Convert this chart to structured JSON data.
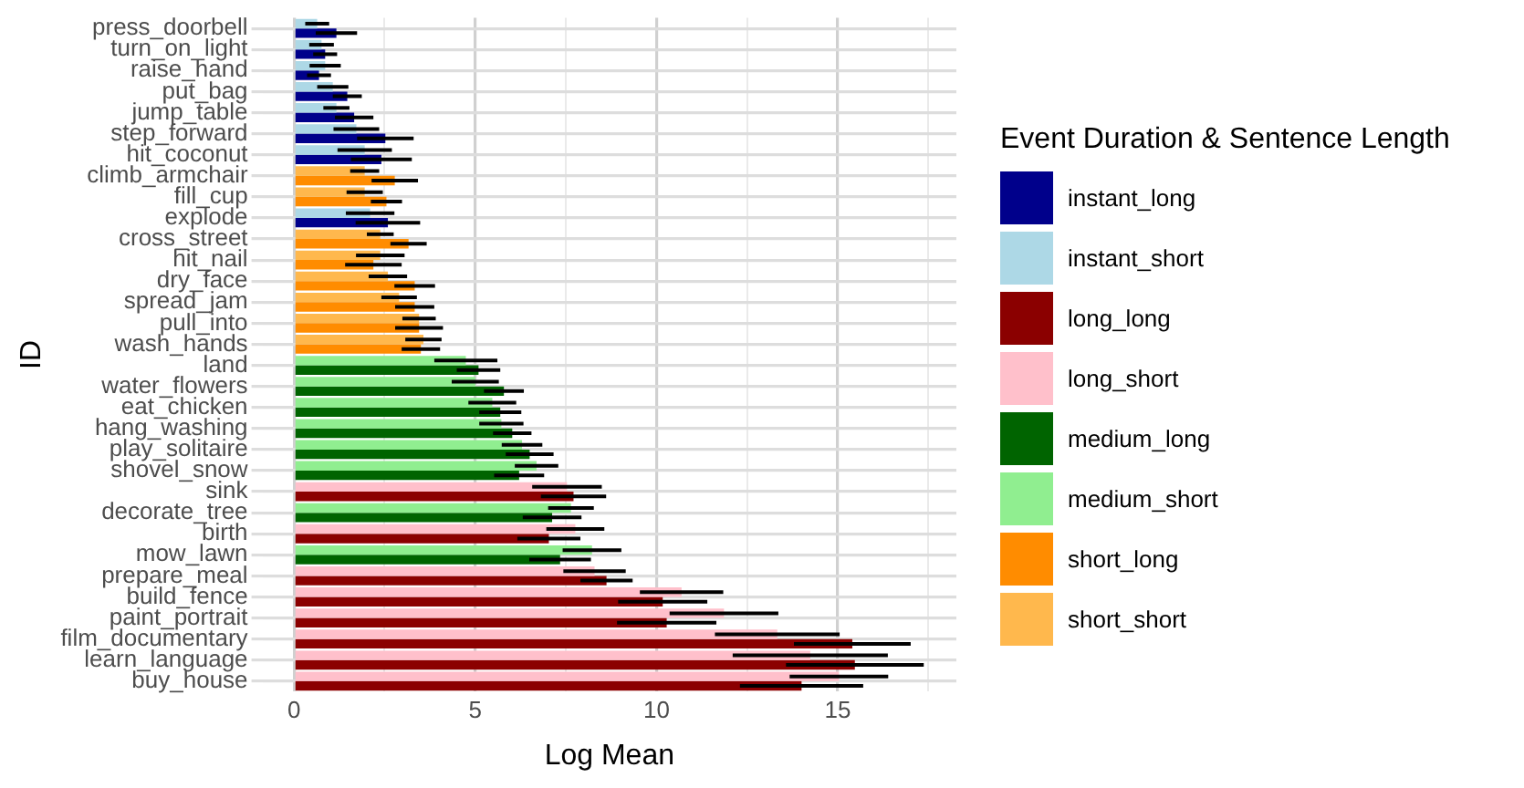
{
  "chart_data": {
    "type": "bar",
    "orientation": "horizontal",
    "xlabel": "Log Mean",
    "ylabel": "ID",
    "legend_title": "Event Duration & Sentence Length",
    "legend": "right",
    "grid": true,
    "categories": [
      "press_doorbell",
      "turn_on_light",
      "raise_hand",
      "put_bag",
      "jump_table",
      "step_forward",
      "hit_coconut",
      "climb_armchair",
      "fill_cup",
      "explode",
      "cross_street",
      "hit_nail",
      "dry_face",
      "spread_jam",
      "pull_into",
      "wash_hands",
      "land",
      "water_flowers",
      "eat_chicken",
      "hang_washing",
      "play_solitaire",
      "shovel_snow",
      "sink",
      "decorate_tree",
      "birth",
      "mow_lawn",
      "prepare_meal",
      "build_fence",
      "paint_portrait",
      "film_documentary",
      "learn_language",
      "buy_house"
    ],
    "xlim": [
      -0.87,
      18.27
    ],
    "xticks": [
      0,
      {
        "value": 2.5,
        "label": null
      },
      5,
      {
        "value": 7.5,
        "label": null
      },
      10,
      {
        "value": 12.5,
        "label": null
      },
      15,
      {
        "value": 17.5,
        "label": null
      }
    ],
    "series": [
      {
        "name": "instant_long",
        "color": "#00008b",
        "values": [
          1.17,
          0.86,
          0.69,
          1.47,
          1.66,
          2.52,
          2.41,
          null,
          null,
          2.59,
          null,
          null,
          null,
          null,
          null,
          null,
          null,
          null,
          null,
          null,
          null,
          null,
          null,
          null,
          null,
          null,
          null,
          null,
          null,
          null,
          null,
          null
        ],
        "errors": [
          0.57,
          0.33,
          0.33,
          0.4,
          0.53,
          0.78,
          0.84,
          null,
          null,
          0.89,
          null,
          null,
          null,
          null,
          null,
          null,
          null,
          null,
          null,
          null,
          null,
          null,
          null,
          null,
          null,
          null,
          null,
          null,
          null,
          null,
          null,
          null
        ]
      },
      {
        "name": "instant_short",
        "color": "#add8e6",
        "values": [
          0.64,
          0.76,
          0.86,
          1.07,
          1.17,
          1.72,
          1.95,
          null,
          null,
          2.1,
          null,
          null,
          null,
          null,
          null,
          null,
          null,
          null,
          null,
          null,
          null,
          null,
          null,
          null,
          null,
          null,
          null,
          null,
          null,
          null,
          null,
          null
        ],
        "errors": [
          0.33,
          0.34,
          0.43,
          0.43,
          0.36,
          0.63,
          0.75,
          null,
          null,
          0.67,
          null,
          null,
          null,
          null,
          null,
          null,
          null,
          null,
          null,
          null,
          null,
          null,
          null,
          null,
          null,
          null,
          null,
          null,
          null,
          null,
          null,
          null
        ]
      },
      {
        "name": "long_long",
        "color": "#8b0000",
        "values": [
          null,
          null,
          null,
          null,
          null,
          null,
          null,
          null,
          null,
          null,
          null,
          null,
          null,
          null,
          null,
          null,
          null,
          null,
          null,
          null,
          null,
          null,
          7.71,
          null,
          7.03,
          null,
          8.62,
          10.17,
          10.28,
          15.4,
          15.47,
          14.0
        ],
        "errors": [
          null,
          null,
          null,
          null,
          null,
          null,
          null,
          null,
          null,
          null,
          null,
          null,
          null,
          null,
          null,
          null,
          null,
          null,
          null,
          null,
          null,
          null,
          0.9,
          null,
          0.87,
          null,
          0.72,
          1.23,
          1.37,
          1.61,
          1.9,
          1.7
        ]
      },
      {
        "name": "long_short",
        "color": "#ffc0cb",
        "values": [
          null,
          null,
          null,
          null,
          null,
          null,
          null,
          null,
          null,
          null,
          null,
          null,
          null,
          null,
          null,
          null,
          null,
          null,
          null,
          null,
          null,
          null,
          7.53,
          null,
          7.76,
          null,
          8.29,
          10.69,
          11.86,
          13.33,
          14.24,
          15.03
        ],
        "errors": [
          null,
          null,
          null,
          null,
          null,
          null,
          null,
          null,
          null,
          null,
          null,
          null,
          null,
          null,
          null,
          null,
          null,
          null,
          null,
          null,
          null,
          null,
          0.96,
          null,
          0.8,
          null,
          0.86,
          1.15,
          1.5,
          1.72,
          2.14,
          1.36
        ]
      },
      {
        "name": "medium_long",
        "color": "#006400",
        "values": [
          null,
          null,
          null,
          null,
          null,
          null,
          null,
          null,
          null,
          null,
          null,
          null,
          null,
          null,
          null,
          null,
          5.09,
          5.79,
          5.69,
          6.02,
          6.5,
          6.21,
          null,
          7.12,
          null,
          7.34,
          null,
          null,
          null,
          null,
          null,
          null
        ],
        "errors": [
          null,
          null,
          null,
          null,
          null,
          null,
          null,
          null,
          null,
          null,
          null,
          null,
          null,
          null,
          null,
          null,
          0.6,
          0.55,
          0.58,
          0.53,
          0.66,
          0.69,
          null,
          0.81,
          null,
          0.85,
          null,
          null,
          null,
          null,
          null,
          null
        ]
      },
      {
        "name": "medium_short",
        "color": "#90ee90",
        "values": [
          null,
          null,
          null,
          null,
          null,
          null,
          null,
          null,
          null,
          null,
          null,
          null,
          null,
          null,
          null,
          null,
          4.74,
          5.0,
          5.47,
          5.72,
          6.29,
          6.69,
          null,
          7.64,
          null,
          8.22,
          null,
          null,
          null,
          null,
          null,
          null
        ],
        "errors": [
          null,
          null,
          null,
          null,
          null,
          null,
          null,
          null,
          null,
          null,
          null,
          null,
          null,
          null,
          null,
          null,
          0.87,
          0.65,
          0.66,
          0.61,
          0.56,
          0.6,
          null,
          0.63,
          null,
          0.81,
          null,
          null,
          null,
          null,
          null,
          null
        ]
      },
      {
        "name": "short_long",
        "color": "#ff8c00",
        "values": [
          null,
          null,
          null,
          null,
          null,
          null,
          null,
          2.78,
          2.55,
          null,
          3.16,
          2.19,
          3.33,
          3.33,
          3.45,
          3.5,
          null,
          null,
          null,
          null,
          null,
          null,
          null,
          null,
          null,
          null,
          null,
          null,
          null,
          null,
          null,
          null
        ],
        "errors": [
          null,
          null,
          null,
          null,
          null,
          null,
          null,
          0.64,
          0.43,
          null,
          0.5,
          0.78,
          0.56,
          0.54,
          0.66,
          0.53,
          null,
          null,
          null,
          null,
          null,
          null,
          null,
          null,
          null,
          null,
          null,
          null,
          null,
          null,
          null,
          null
        ]
      },
      {
        "name": "short_short",
        "color": "#ffb84d",
        "values": [
          null,
          null,
          null,
          null,
          null,
          null,
          null,
          1.95,
          1.95,
          null,
          2.38,
          2.38,
          2.59,
          2.9,
          3.45,
          3.57,
          null,
          null,
          null,
          null,
          null,
          null,
          null,
          null,
          null,
          null,
          null,
          null,
          null,
          null,
          null,
          null
        ],
        "errors": [
          null,
          null,
          null,
          null,
          null,
          null,
          null,
          0.4,
          0.5,
          null,
          0.37,
          0.67,
          0.53,
          0.49,
          0.46,
          0.5,
          null,
          null,
          null,
          null,
          null,
          null,
          null,
          null,
          null,
          null,
          null,
          null,
          null,
          null,
          null,
          null
        ]
      }
    ]
  }
}
